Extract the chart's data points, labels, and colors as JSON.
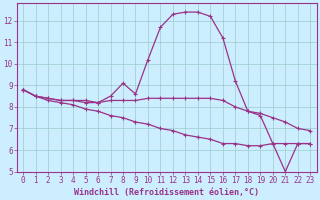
{
  "xlabel": "Windchill (Refroidissement éolien,°C)",
  "bg_color": "#cceeff",
  "line_color": "#993388",
  "grid_color": "#99cccc",
  "xlim": [
    -0.5,
    23.5
  ],
  "ylim": [
    5,
    12.8
  ],
  "yticks": [
    5,
    6,
    7,
    8,
    9,
    10,
    11,
    12
  ],
  "xticks": [
    0,
    1,
    2,
    3,
    4,
    5,
    6,
    7,
    8,
    9,
    10,
    11,
    12,
    13,
    14,
    15,
    16,
    17,
    18,
    19,
    20,
    21,
    22,
    23
  ],
  "line1_x": [
    0,
    1,
    2,
    3,
    4,
    5,
    6,
    7,
    8,
    9,
    10,
    11,
    12,
    13,
    14,
    15,
    16,
    17,
    18,
    19,
    20,
    21,
    22,
    23
  ],
  "line1_y": [
    8.8,
    8.5,
    8.4,
    8.3,
    8.3,
    8.3,
    8.2,
    8.5,
    9.1,
    8.6,
    10.2,
    11.7,
    12.3,
    12.4,
    12.4,
    12.2,
    11.2,
    9.2,
    7.8,
    7.6,
    6.3,
    5.0,
    6.3,
    6.3
  ],
  "line2_x": [
    0,
    1,
    2,
    3,
    4,
    5,
    6,
    7,
    8,
    9,
    10,
    11,
    12,
    13,
    14,
    15,
    16,
    17,
    18,
    19,
    20,
    21,
    22,
    23
  ],
  "line2_y": [
    8.8,
    8.5,
    8.4,
    8.3,
    8.3,
    8.2,
    8.2,
    8.3,
    8.3,
    8.3,
    8.4,
    8.4,
    8.4,
    8.4,
    8.4,
    8.4,
    8.3,
    8.0,
    7.8,
    7.7,
    7.5,
    7.3,
    7.0,
    6.9
  ],
  "line3_x": [
    0,
    1,
    2,
    3,
    4,
    5,
    6,
    7,
    8,
    9,
    10,
    11,
    12,
    13,
    14,
    15,
    16,
    17,
    18,
    19,
    20,
    21,
    22,
    23
  ],
  "line3_y": [
    8.8,
    8.5,
    8.3,
    8.2,
    8.1,
    7.9,
    7.8,
    7.6,
    7.5,
    7.3,
    7.2,
    7.0,
    6.9,
    6.7,
    6.6,
    6.5,
    6.3,
    6.3,
    6.2,
    6.2,
    6.3,
    6.3,
    6.3,
    6.3
  ],
  "marker": "+",
  "markersize": 3,
  "linewidth": 0.9,
  "tick_fontsize": 5.5,
  "label_fontsize": 6.0
}
